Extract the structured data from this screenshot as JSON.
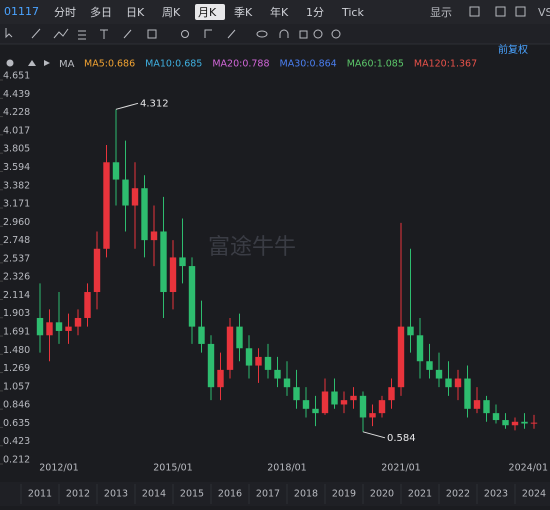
{
  "toolbar": {
    "code": "01117",
    "periods": [
      "分时",
      "多日",
      "日K",
      "周K",
      "月K",
      "季K",
      "年K",
      "1分",
      "Tick"
    ],
    "active_index": 4,
    "display": "显示",
    "compare": "VS"
  },
  "adjust": "前复权",
  "watermark": "富途牛牛",
  "chart_data": {
    "type": "candlestick",
    "indicator": "MA",
    "ma_legend": [
      {
        "name": "MA5:0.686",
        "color": "#f0a232"
      },
      {
        "name": "MA10:0.685",
        "color": "#3fb0e0"
      },
      {
        "name": "MA20:0.788",
        "color": "#d166d8"
      },
      {
        "name": "MA30:0.864",
        "color": "#4a7ef0"
      },
      {
        "name": "MA60:1.085",
        "color": "#5cc76a"
      },
      {
        "name": "MA120:1.367",
        "color": "#e8524a"
      }
    ],
    "up_color": "#e8343c",
    "down_color": "#2ebd6f",
    "x": [
      "2011/07",
      "2011/10",
      "2012/01",
      "2012/04",
      "2012/07",
      "2012/10",
      "2013/01",
      "2013/04",
      "2013/07",
      "2013/10",
      "2014/01",
      "2014/04",
      "2014/07",
      "2014/10",
      "2015/01",
      "2015/04",
      "2015/07",
      "2015/10",
      "2016/01",
      "2016/04",
      "2016/07",
      "2016/10",
      "2017/01",
      "2017/04",
      "2017/07",
      "2017/10",
      "2018/01",
      "2018/04",
      "2018/07",
      "2018/10",
      "2019/01",
      "2019/04",
      "2019/07",
      "2019/10",
      "2020/01",
      "2020/04",
      "2020/07",
      "2020/10",
      "2021/01",
      "2021/04",
      "2021/07",
      "2021/10",
      "2022/01",
      "2022/04",
      "2022/07",
      "2022/10",
      "2023/01",
      "2023/04",
      "2023/07",
      "2023/10",
      "2024/01",
      "2024/04",
      "2024/07"
    ],
    "open": [
      1.9,
      1.7,
      1.85,
      1.75,
      1.8,
      1.9,
      2.2,
      2.7,
      3.7,
      3.5,
      3.2,
      3.4,
      2.8,
      2.9,
      2.2,
      2.6,
      2.5,
      1.8,
      1.6,
      1.1,
      1.3,
      1.8,
      1.55,
      1.35,
      1.45,
      1.3,
      1.2,
      1.1,
      0.95,
      0.85,
      0.8,
      1.05,
      0.9,
      0.95,
      1.0,
      0.75,
      0.8,
      0.95,
      1.1,
      1.8,
      1.7,
      1.4,
      1.3,
      1.2,
      1.1,
      1.2,
      0.85,
      0.95,
      0.8,
      0.72,
      0.66,
      0.7,
      0.68
    ],
    "high": [
      2.3,
      2.0,
      2.2,
      1.95,
      2.0,
      2.3,
      2.9,
      3.9,
      4.312,
      3.95,
      3.7,
      3.55,
      3.2,
      3.3,
      2.8,
      3.05,
      2.6,
      2.1,
      1.7,
      1.5,
      1.9,
      1.95,
      1.7,
      1.55,
      1.6,
      1.45,
      1.4,
      1.3,
      1.1,
      1.0,
      1.2,
      1.2,
      1.05,
      1.1,
      1.05,
      0.9,
      1.0,
      1.2,
      3.0,
      2.7,
      1.9,
      1.6,
      1.5,
      1.4,
      1.3,
      1.35,
      1.1,
      1.0,
      0.9,
      0.8,
      0.75,
      0.8,
      0.78
    ],
    "low": [
      1.5,
      1.4,
      1.6,
      1.6,
      1.7,
      1.8,
      2.0,
      2.6,
      3.2,
      2.9,
      2.7,
      2.6,
      2.5,
      1.9,
      2.0,
      2.3,
      1.6,
      1.5,
      0.95,
      0.95,
      1.2,
      1.4,
      1.2,
      1.15,
      1.2,
      1.1,
      1.0,
      0.85,
      0.75,
      0.65,
      0.78,
      0.85,
      0.8,
      0.85,
      0.584,
      0.65,
      0.75,
      0.85,
      1.0,
      1.5,
      1.2,
      1.2,
      1.1,
      1.0,
      0.95,
      0.75,
      0.8,
      0.7,
      0.68,
      0.62,
      0.6,
      0.62,
      0.62
    ],
    "close": [
      1.7,
      1.85,
      1.75,
      1.8,
      1.9,
      2.2,
      2.7,
      3.7,
      3.5,
      3.2,
      3.4,
      2.8,
      2.9,
      2.2,
      2.6,
      2.5,
      1.8,
      1.6,
      1.1,
      1.3,
      1.8,
      1.55,
      1.35,
      1.45,
      1.3,
      1.2,
      1.1,
      0.95,
      0.85,
      0.8,
      1.05,
      0.9,
      0.95,
      1.0,
      0.75,
      0.8,
      0.95,
      1.1,
      1.8,
      1.7,
      1.4,
      1.3,
      1.2,
      1.1,
      1.2,
      0.85,
      0.95,
      0.8,
      0.72,
      0.66,
      0.7,
      0.68,
      0.69
    ],
    "ylim": [
      0.212,
      4.651
    ],
    "yticks": [
      4.651,
      4.439,
      4.228,
      4.017,
      3.805,
      3.594,
      3.382,
      3.171,
      {
        "value": 2.96,
        "label": "2.960"
      },
      2.748,
      2.537,
      2.326,
      2.114,
      1.903,
      1.691,
      {
        "value": 1.48,
        "label": "1.480"
      },
      1.269,
      1.057,
      0.846,
      0.635,
      0.423,
      0.212
    ],
    "xticks": [
      "2012/01",
      "2015/01",
      "2018/01",
      "2021/01",
      "2024/01"
    ],
    "year_labels": [
      "2011",
      "2012",
      "2013",
      "2014",
      "2015",
      "2016",
      "2017",
      "2018",
      "2019",
      "2020",
      "2021",
      "2022",
      "2023",
      "2024"
    ],
    "annotations": [
      {
        "index": 8,
        "field": "high"
      },
      {
        "index": 34,
        "field": "low"
      }
    ],
    "grid": false
  }
}
